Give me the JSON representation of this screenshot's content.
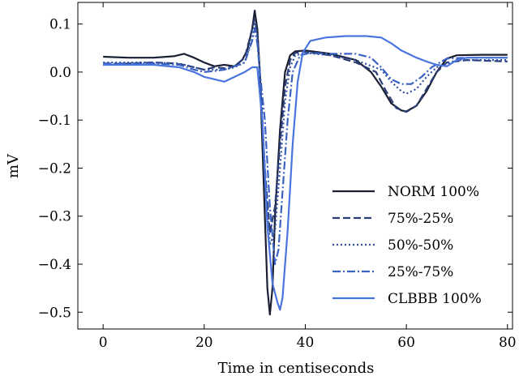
{
  "chart_data": {
    "type": "line",
    "xlabel": "Time in centiseconds",
    "ylabel": "mV",
    "xlim": [
      -5,
      81
    ],
    "ylim": [
      -0.535,
      0.145
    ],
    "x_ticks": [
      0,
      20,
      40,
      60,
      80
    ],
    "y_ticks": [
      0.1,
      0.0,
      -0.1,
      -0.2,
      -0.3,
      -0.4,
      -0.5
    ],
    "y_tick_labels": [
      "0.1",
      "0.0",
      "−0.1",
      "−0.2",
      "−0.3",
      "−0.4",
      "−0.5"
    ],
    "legend_position": "lower-right",
    "grid": false,
    "series": [
      {
        "name": "NORM 100%",
        "color": "#1a1f33",
        "dash": "solid",
        "points": [
          [
            0,
            0.032
          ],
          [
            5,
            0.03
          ],
          [
            10,
            0.03
          ],
          [
            14,
            0.033
          ],
          [
            16,
            0.038
          ],
          [
            18,
            0.03
          ],
          [
            20,
            0.02
          ],
          [
            22,
            0.012
          ],
          [
            24,
            0.015
          ],
          [
            26,
            0.012
          ],
          [
            27.5,
            0.025
          ],
          [
            28.5,
            0.045
          ],
          [
            29.5,
            0.09
          ],
          [
            30,
            0.128
          ],
          [
            30.5,
            0.09
          ],
          [
            31,
            0.0
          ],
          [
            32,
            -0.3
          ],
          [
            32.5,
            -0.45
          ],
          [
            33,
            -0.505
          ],
          [
            33.5,
            -0.45
          ],
          [
            34,
            -0.3
          ],
          [
            35,
            -0.12
          ],
          [
            36,
            0.0
          ],
          [
            37,
            0.035
          ],
          [
            38,
            0.043
          ],
          [
            40,
            0.045
          ],
          [
            45,
            0.038
          ],
          [
            50,
            0.025
          ],
          [
            53,
            0.0
          ],
          [
            55,
            -0.03
          ],
          [
            57,
            -0.065
          ],
          [
            59,
            -0.08
          ],
          [
            60,
            -0.082
          ],
          [
            62,
            -0.07
          ],
          [
            64,
            -0.04
          ],
          [
            66,
            0.0
          ],
          [
            68,
            0.028
          ],
          [
            70,
            0.035
          ],
          [
            75,
            0.036
          ],
          [
            80,
            0.036
          ]
        ]
      },
      {
        "name": "75%-25%",
        "color": "#2b3d75",
        "dash": "9 4",
        "points": [
          [
            0,
            0.015
          ],
          [
            5,
            0.018
          ],
          [
            10,
            0.02
          ],
          [
            14,
            0.018
          ],
          [
            16,
            0.015
          ],
          [
            18,
            0.01
          ],
          [
            20,
            0.005
          ],
          [
            22,
            0.01
          ],
          [
            24,
            0.008
          ],
          [
            26,
            0.012
          ],
          [
            28,
            0.03
          ],
          [
            29.5,
            0.09
          ],
          [
            30,
            0.11
          ],
          [
            30.5,
            0.08
          ],
          [
            31,
            0.0
          ],
          [
            32,
            -0.2
          ],
          [
            33,
            -0.335
          ],
          [
            34,
            -0.28
          ],
          [
            35,
            -0.15
          ],
          [
            36,
            -0.03
          ],
          [
            37,
            0.025
          ],
          [
            38,
            0.04
          ],
          [
            40,
            0.042
          ],
          [
            45,
            0.035
          ],
          [
            50,
            0.02
          ],
          [
            54,
            0.0
          ],
          [
            56,
            -0.04
          ],
          [
            58,
            -0.075
          ],
          [
            60,
            -0.083
          ],
          [
            62,
            -0.07
          ],
          [
            64,
            -0.035
          ],
          [
            66,
            0.0
          ],
          [
            68,
            0.02
          ],
          [
            72,
            0.025
          ],
          [
            80,
            0.022
          ]
        ]
      },
      {
        "name": "50%-50%",
        "color": "#2f4fa0",
        "dash": "2 3",
        "points": [
          [
            0,
            0.02
          ],
          [
            5,
            0.02
          ],
          [
            10,
            0.02
          ],
          [
            15,
            0.018
          ],
          [
            18,
            0.01
          ],
          [
            20,
            0.005
          ],
          [
            22,
            0.005
          ],
          [
            24,
            0.005
          ],
          [
            26,
            0.01
          ],
          [
            28,
            0.02
          ],
          [
            29.5,
            0.07
          ],
          [
            30,
            0.1
          ],
          [
            30.5,
            0.07
          ],
          [
            31,
            0.0
          ],
          [
            32,
            -0.2
          ],
          [
            33,
            -0.36
          ],
          [
            34,
            -0.33
          ],
          [
            35,
            -0.2
          ],
          [
            36,
            -0.06
          ],
          [
            37,
            0.01
          ],
          [
            38,
            0.035
          ],
          [
            40,
            0.04
          ],
          [
            45,
            0.035
          ],
          [
            50,
            0.025
          ],
          [
            55,
            0.005
          ],
          [
            57,
            -0.02
          ],
          [
            59,
            -0.04
          ],
          [
            60,
            -0.045
          ],
          [
            62,
            -0.035
          ],
          [
            64,
            -0.01
          ],
          [
            66,
            0.01
          ],
          [
            70,
            0.025
          ],
          [
            80,
            0.025
          ]
        ]
      },
      {
        "name": "25%-75%",
        "color": "#3a62c2",
        "dash": "10 3 2 3",
        "points": [
          [
            0,
            0.018
          ],
          [
            5,
            0.018
          ],
          [
            10,
            0.018
          ],
          [
            15,
            0.015
          ],
          [
            18,
            0.005
          ],
          [
            20,
            0.0
          ],
          [
            22,
            0.002
          ],
          [
            24,
            0.005
          ],
          [
            26,
            0.012
          ],
          [
            28,
            0.02
          ],
          [
            29.5,
            0.065
          ],
          [
            30,
            0.09
          ],
          [
            30.5,
            0.06
          ],
          [
            31,
            0.0
          ],
          [
            32,
            -0.1
          ],
          [
            33,
            -0.28
          ],
          [
            34,
            -0.4
          ],
          [
            34.7,
            -0.37
          ],
          [
            35.5,
            -0.25
          ],
          [
            36.5,
            -0.1
          ],
          [
            37.5,
            0.0
          ],
          [
            39,
            0.035
          ],
          [
            41,
            0.04
          ],
          [
            45,
            0.038
          ],
          [
            50,
            0.038
          ],
          [
            53,
            0.03
          ],
          [
            55,
            0.01
          ],
          [
            57,
            -0.015
          ],
          [
            59,
            -0.025
          ],
          [
            61,
            -0.025
          ],
          [
            63,
            -0.01
          ],
          [
            65,
            0.01
          ],
          [
            68,
            0.028
          ],
          [
            72,
            0.03
          ],
          [
            80,
            0.03
          ]
        ]
      },
      {
        "name": "CLBBB 100%",
        "color": "#4a74de",
        "dash": "solid",
        "points": [
          [
            0,
            0.015
          ],
          [
            5,
            0.015
          ],
          [
            10,
            0.015
          ],
          [
            15,
            0.01
          ],
          [
            18,
            0.0
          ],
          [
            20,
            -0.01
          ],
          [
            22,
            -0.015
          ],
          [
            24,
            -0.02
          ],
          [
            26,
            -0.01
          ],
          [
            28,
            0.0
          ],
          [
            29.5,
            0.01
          ],
          [
            30.5,
            0.01
          ],
          [
            31.5,
            -0.1
          ],
          [
            32.5,
            -0.32
          ],
          [
            33.5,
            -0.44
          ],
          [
            34.5,
            -0.48
          ],
          [
            35,
            -0.495
          ],
          [
            35.5,
            -0.47
          ],
          [
            36.5,
            -0.33
          ],
          [
            37.5,
            -0.15
          ],
          [
            38.5,
            -0.02
          ],
          [
            39.5,
            0.04
          ],
          [
            41,
            0.065
          ],
          [
            44,
            0.072
          ],
          [
            48,
            0.075
          ],
          [
            52,
            0.075
          ],
          [
            55,
            0.072
          ],
          [
            57,
            0.06
          ],
          [
            59,
            0.045
          ],
          [
            62,
            0.03
          ],
          [
            64,
            0.022
          ],
          [
            66,
            0.015
          ],
          [
            68,
            0.012
          ],
          [
            70,
            0.025
          ],
          [
            72,
            0.03
          ],
          [
            75,
            0.03
          ],
          [
            80,
            0.03
          ]
        ]
      }
    ]
  }
}
